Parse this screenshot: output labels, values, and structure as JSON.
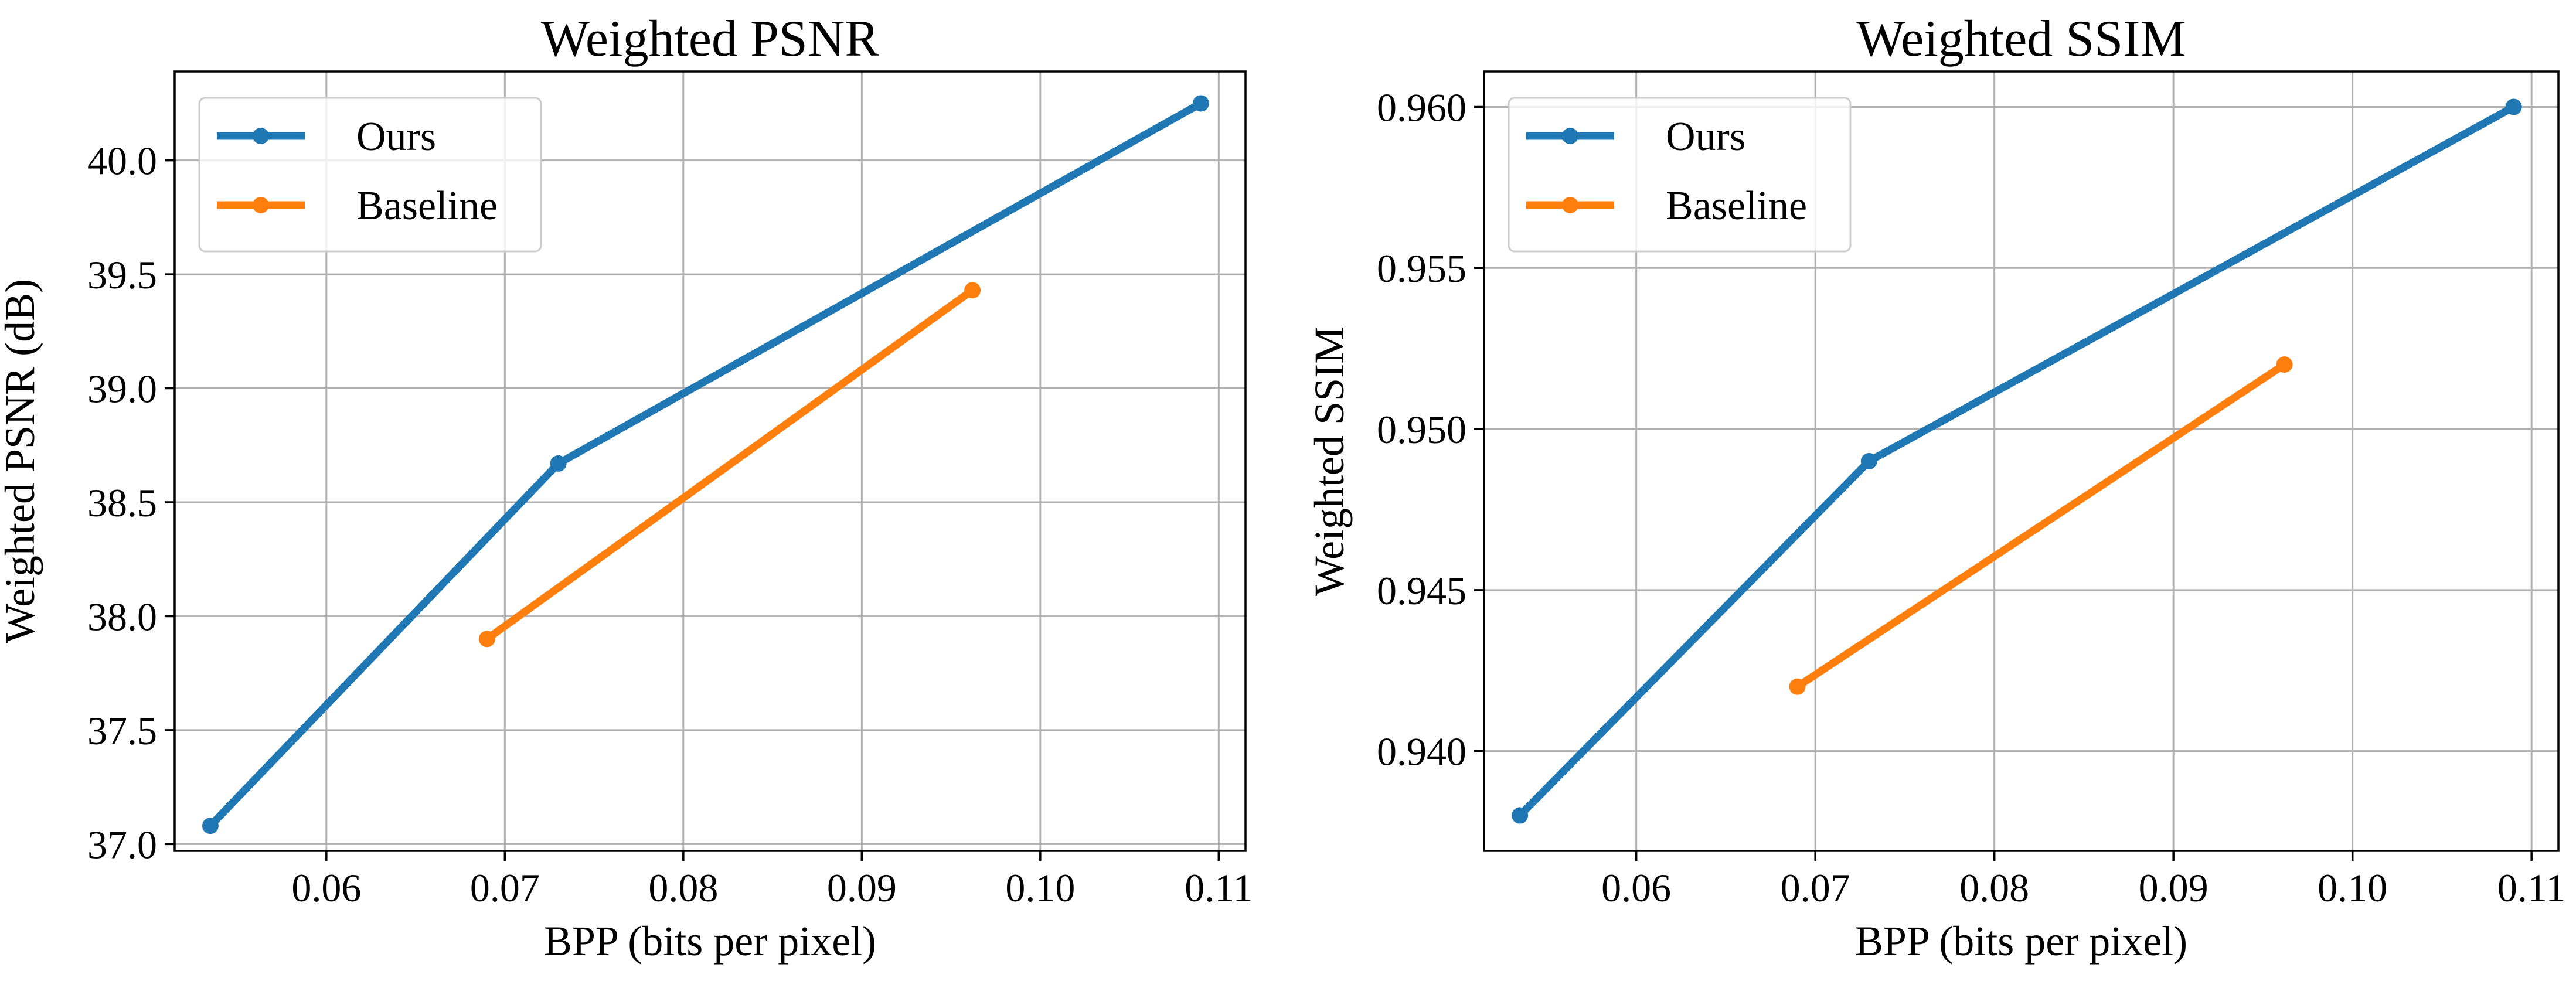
{
  "chart_data": [
    {
      "type": "line",
      "title": "Weighted PSNR",
      "xlabel": "BPP (bits per pixel)",
      "ylabel": "Weighted PSNR (dB)",
      "xlim": [
        0.0515,
        0.1115
      ],
      "ylim": [
        36.97,
        40.39
      ],
      "xticks": [
        0.06,
        0.07,
        0.08,
        0.09,
        0.1,
        0.11
      ],
      "xtick_labels": [
        "0.06",
        "0.07",
        "0.08",
        "0.09",
        "0.10",
        "0.11"
      ],
      "yticks": [
        37.0,
        37.5,
        38.0,
        38.5,
        39.0,
        39.5,
        40.0
      ],
      "ytick_labels": [
        "37.0",
        "37.5",
        "38.0",
        "38.5",
        "39.0",
        "39.5",
        "40.0"
      ],
      "grid": true,
      "legend_position": "upper-left",
      "series": [
        {
          "name": "Ours",
          "color": "#1f77b4",
          "x": [
            0.0535,
            0.073,
            0.109
          ],
          "y": [
            37.08,
            38.67,
            40.25
          ]
        },
        {
          "name": "Baseline",
          "color": "#ff7f0e",
          "x": [
            0.069,
            0.0962
          ],
          "y": [
            37.9,
            39.43
          ]
        }
      ]
    },
    {
      "type": "line",
      "title": "Weighted SSIM",
      "xlabel": "BPP (bits per pixel)",
      "ylabel": "Weighted SSIM",
      "xlim": [
        0.0515,
        0.1115
      ],
      "ylim": [
        0.9369,
        0.9611
      ],
      "xticks": [
        0.06,
        0.07,
        0.08,
        0.09,
        0.1,
        0.11
      ],
      "xtick_labels": [
        "0.06",
        "0.07",
        "0.08",
        "0.09",
        "0.10",
        "0.11"
      ],
      "yticks": [
        0.94,
        0.945,
        0.95,
        0.955,
        0.96
      ],
      "ytick_labels": [
        "0.940",
        "0.945",
        "0.950",
        "0.955",
        "0.960"
      ],
      "grid": true,
      "legend_position": "upper-left",
      "series": [
        {
          "name": "Ours",
          "color": "#1f77b4",
          "x": [
            0.0535,
            0.073,
            0.109
          ],
          "y": [
            0.938,
            0.949,
            0.96
          ]
        },
        {
          "name": "Baseline",
          "color": "#ff7f0e",
          "x": [
            0.069,
            0.0962
          ],
          "y": [
            0.942,
            0.952
          ]
        }
      ]
    }
  ]
}
